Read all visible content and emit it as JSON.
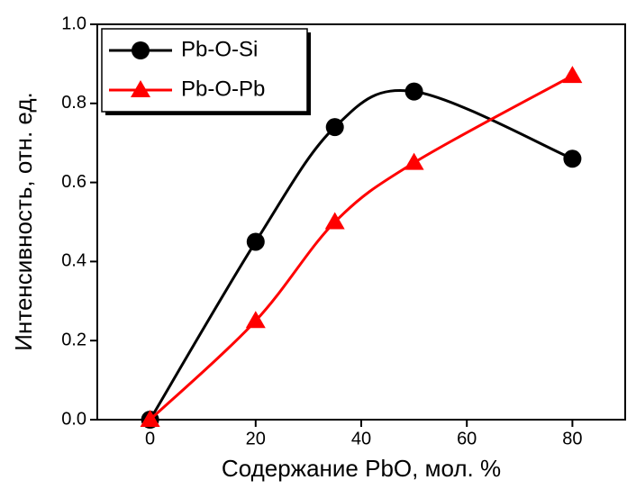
{
  "chart_data": {
    "type": "line",
    "x_label": "Содержание PbO, мол. %",
    "y_label": "Интенсивность, отн. ед.",
    "x": [
      0,
      20,
      35,
      50,
      80
    ],
    "series": [
      {
        "name": "Pb-O-Si",
        "color": "#000000",
        "marker": "circle",
        "values": [
          0,
          0.45,
          0.74,
          0.83,
          0.66
        ]
      },
      {
        "name": "Pb-O-Pb",
        "color": "#ff0000",
        "marker": "triangle",
        "values": [
          0,
          0.25,
          0.5,
          0.65,
          0.87
        ]
      }
    ],
    "xlim": [
      -10,
      90
    ],
    "xticks": [
      0,
      20,
      40,
      60,
      80
    ],
    "ylim": [
      0,
      1
    ],
    "yticks": [
      {
        "value": 0,
        "label": "0.0"
      },
      {
        "value": 0.2,
        "label": "0.2"
      },
      {
        "value": 0.4,
        "label": "0.4"
      },
      {
        "value": 0.6,
        "label": "0.6"
      },
      {
        "value": 0.8,
        "label": "0.8"
      },
      {
        "value": 1,
        "label": "1.0"
      }
    ],
    "smooth": true,
    "legend": "upper left"
  }
}
